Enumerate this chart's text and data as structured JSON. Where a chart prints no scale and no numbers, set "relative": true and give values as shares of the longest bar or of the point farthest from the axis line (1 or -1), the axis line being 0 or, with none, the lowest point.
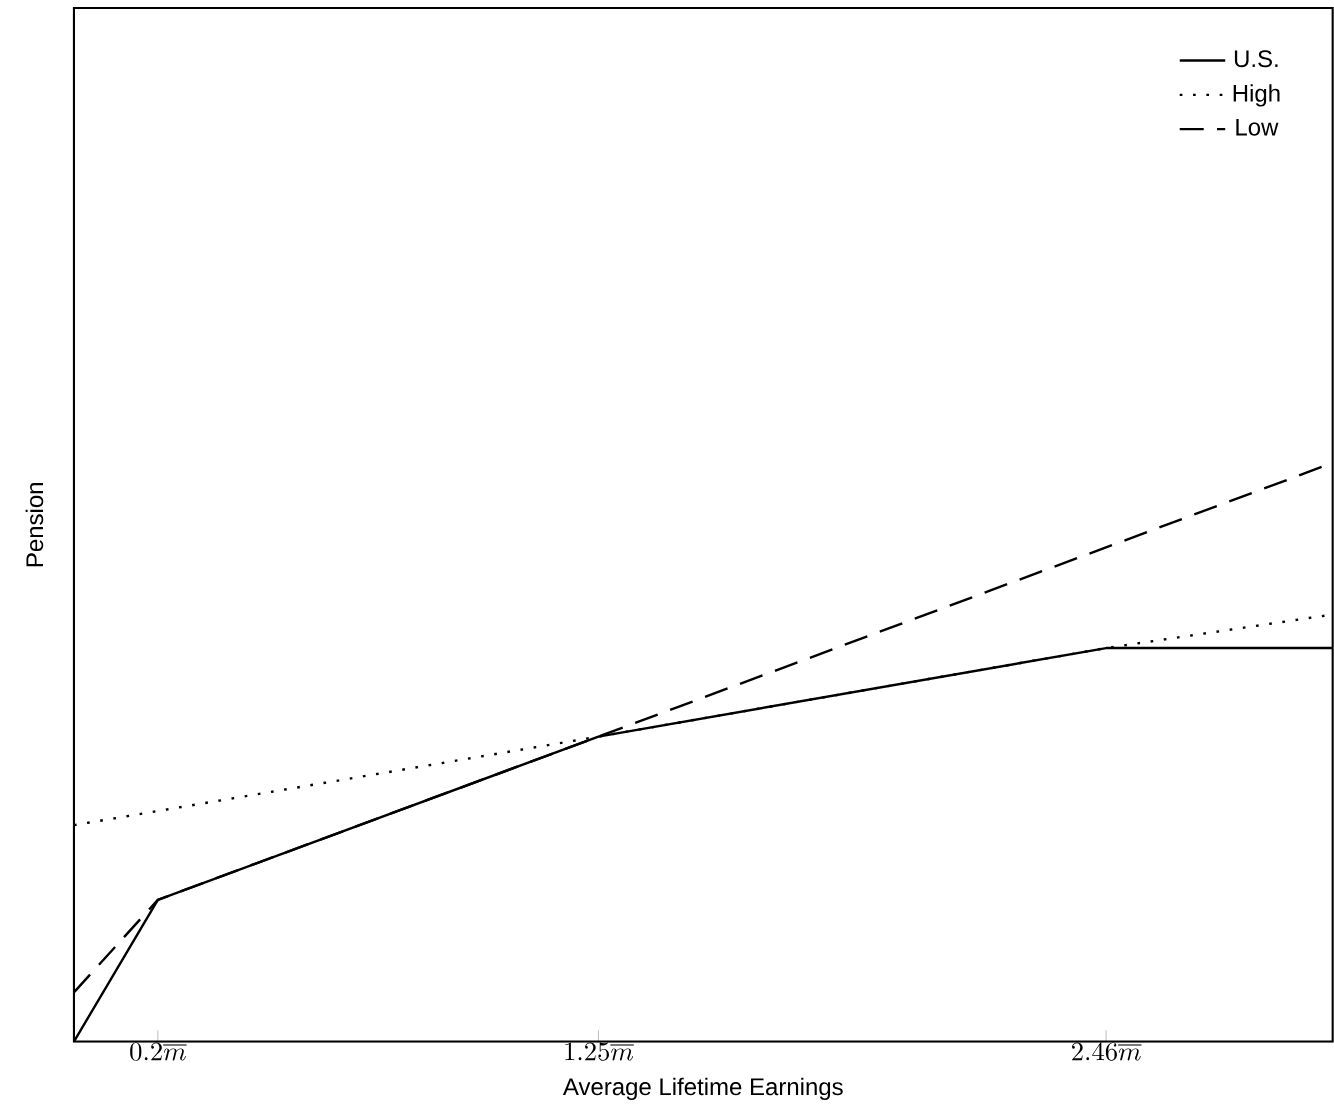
{
  "chart_data": {
    "type": "line",
    "relative": true,
    "xlabel": "Average Lifetime Earnings",
    "ylabel": "Pension",
    "xlim": [
      0,
      3
    ],
    "xticks": [
      {
        "value": 0.2,
        "label": "0.2\\overline{m}"
      },
      {
        "value": 1.25,
        "label": "1.25\\overline{m}"
      },
      {
        "value": 2.46,
        "label": "2.46\\overline{m}"
      }
    ],
    "legend": "top right",
    "marker": "none",
    "series": [
      {
        "name": "U.S.",
        "color": "#000000",
        "line_style": "solid",
        "x": [
          0,
          0.2,
          1.25,
          2.46,
          3
        ],
        "values": [
          0,
          0.245,
          0.527,
          0.68,
          0.68
        ]
      },
      {
        "name": "High",
        "color": "#000000",
        "line_style": "dotted",
        "x": [
          0,
          1.25,
          2.46,
          3
        ],
        "values": [
          0.374,
          0.527,
          0.68,
          0.738
        ]
      },
      {
        "name": "Low",
        "color": "#000000",
        "line_style": "dashed",
        "x": [
          0,
          0.2,
          1.25,
          3
        ],
        "values": [
          0.085,
          0.245,
          0.527,
          1.0
        ]
      }
    ]
  }
}
